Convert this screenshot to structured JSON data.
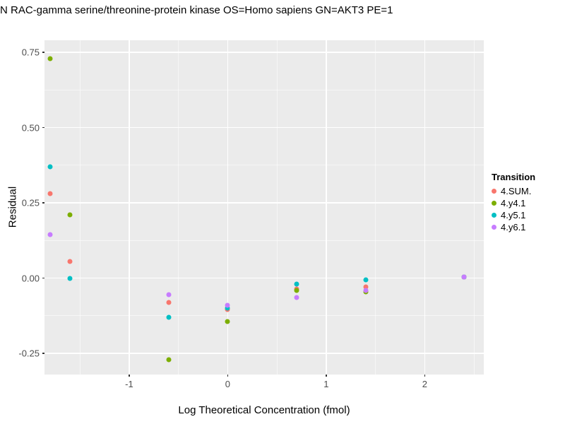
{
  "chart_data": {
    "type": "scatter",
    "title": "N RAC-gamma serine/threonine-protein kinase OS=Homo sapiens GN=AKT3 PE=1",
    "xlabel": "Log Theoretical Concentration (fmol)",
    "ylabel": "Residual",
    "xlim": [
      -1.86,
      2.6
    ],
    "ylim": [
      -0.32,
      0.79
    ],
    "x_ticks": [
      -1,
      0,
      1,
      2
    ],
    "x_minor_ticks": [
      -1.5,
      -0.5,
      0.5,
      1.5,
      2.5
    ],
    "y_ticks": [
      0.75,
      0.5,
      0.25,
      0,
      -0.25
    ],
    "y_minor_ticks": [
      0.625,
      0.375,
      0.125,
      -0.125
    ],
    "panel_background": "#EBEBEB",
    "grid_color": "#FFFFFF",
    "tick_label_color": "#4D4D4D",
    "legend": {
      "title": "Transition",
      "position": "right"
    },
    "series": [
      {
        "name": "4.SUM.",
        "color": "#F8766D",
        "points": [
          [
            -1.8,
            0.28
          ],
          [
            -1.6,
            0.055
          ],
          [
            -0.6,
            -0.08
          ],
          [
            0,
            -0.105
          ],
          [
            0.7,
            -0.035
          ],
          [
            1.4,
            -0.03
          ],
          [
            2.4,
            0.005
          ]
        ]
      },
      {
        "name": "4.y4.1",
        "color": "#7CAE00",
        "points": [
          [
            -1.8,
            0.73
          ],
          [
            -1.6,
            0.21
          ],
          [
            -0.6,
            -0.27
          ],
          [
            0,
            -0.145
          ],
          [
            0.7,
            -0.04
          ],
          [
            1.4,
            -0.045
          ],
          [
            2.4,
            0.005
          ]
        ]
      },
      {
        "name": "4.y5.1",
        "color": "#00BFC4",
        "points": [
          [
            -1.8,
            0.37
          ],
          [
            -1.6,
            0.0
          ],
          [
            -0.6,
            -0.13
          ],
          [
            0,
            -0.1
          ],
          [
            0.7,
            -0.02
          ],
          [
            1.4,
            -0.005
          ],
          [
            2.4,
            0.005
          ]
        ]
      },
      {
        "name": "4.y6.1",
        "color": "#C77CFF",
        "points": [
          [
            -1.8,
            0.145
          ],
          [
            -0.6,
            -0.055
          ],
          [
            0,
            -0.09
          ],
          [
            0.7,
            -0.065
          ],
          [
            1.4,
            -0.04
          ],
          [
            2.4,
            0.005
          ]
        ]
      }
    ]
  }
}
